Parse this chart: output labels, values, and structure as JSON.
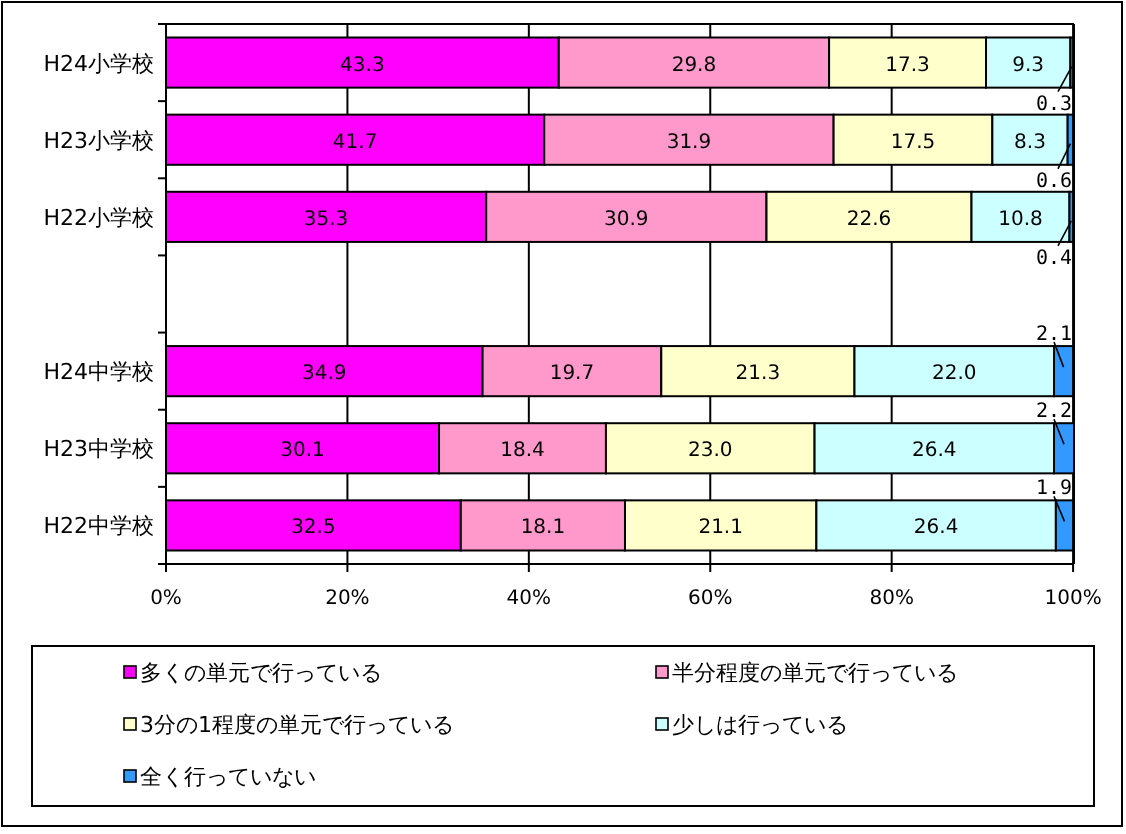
{
  "chart_data": {
    "type": "bar",
    "orientation": "horizontal",
    "stacked": true,
    "grid": "x",
    "legend": "bottom",
    "categories": [
      "H24小学校",
      "H23小学校",
      "H22小学校",
      null,
      "H24中学校",
      "H23中学校",
      "H22中学校"
    ],
    "xlim": [
      0,
      100.1
    ],
    "xticks": [
      {
        "value": 0,
        "label": "0%"
      },
      {
        "value": 20,
        "label": "20%"
      },
      {
        "value": 40,
        "label": "40%"
      },
      {
        "value": 60,
        "label": "60%"
      },
      {
        "value": 80,
        "label": "80%"
      },
      {
        "value": 100,
        "label": "100%"
      }
    ],
    "series": [
      {
        "name": "多くの単元で行っている",
        "color": "#ff00ff",
        "values": [
          43.3,
          41.7,
          35.3,
          null,
          34.9,
          30.1,
          32.5
        ],
        "value_labels": [
          "43.3",
          "41.7",
          "35.3",
          null,
          "34.9",
          "30.1",
          "32.5"
        ]
      },
      {
        "name": "半分程度の単元で行っている",
        "color": "#ff99cc",
        "values": [
          29.8,
          31.9,
          30.9,
          null,
          19.7,
          18.4,
          18.1
        ],
        "value_labels": [
          "29.8",
          "31.9",
          "30.9",
          null,
          "19.7",
          "18.4",
          "18.1"
        ]
      },
      {
        "name": "3分の1程度の単元で行っている",
        "color": "#ffffcc",
        "values": [
          17.3,
          17.5,
          22.6,
          null,
          21.3,
          23.0,
          21.1
        ],
        "value_labels": [
          "17.3",
          "17.5",
          "22.6",
          null,
          "21.3",
          "23.0",
          "21.1"
        ]
      },
      {
        "name": "少しは行っている",
        "color": "#ccffff",
        "values": [
          9.3,
          8.3,
          10.8,
          null,
          22.0,
          26.4,
          26.4
        ],
        "value_labels": [
          "9.3",
          "8.3",
          "10.8",
          null,
          "22.0",
          "26.4",
          "26.4"
        ]
      },
      {
        "name": "全く行っていない",
        "color": "#3399ff",
        "values": [
          0.3,
          0.6,
          0.4,
          null,
          2.1,
          2.2,
          1.9
        ],
        "value_labels": [
          "0.3",
          "0.6",
          "0.4",
          null,
          "2.1",
          "2.2",
          "1.9"
        ]
      }
    ]
  }
}
